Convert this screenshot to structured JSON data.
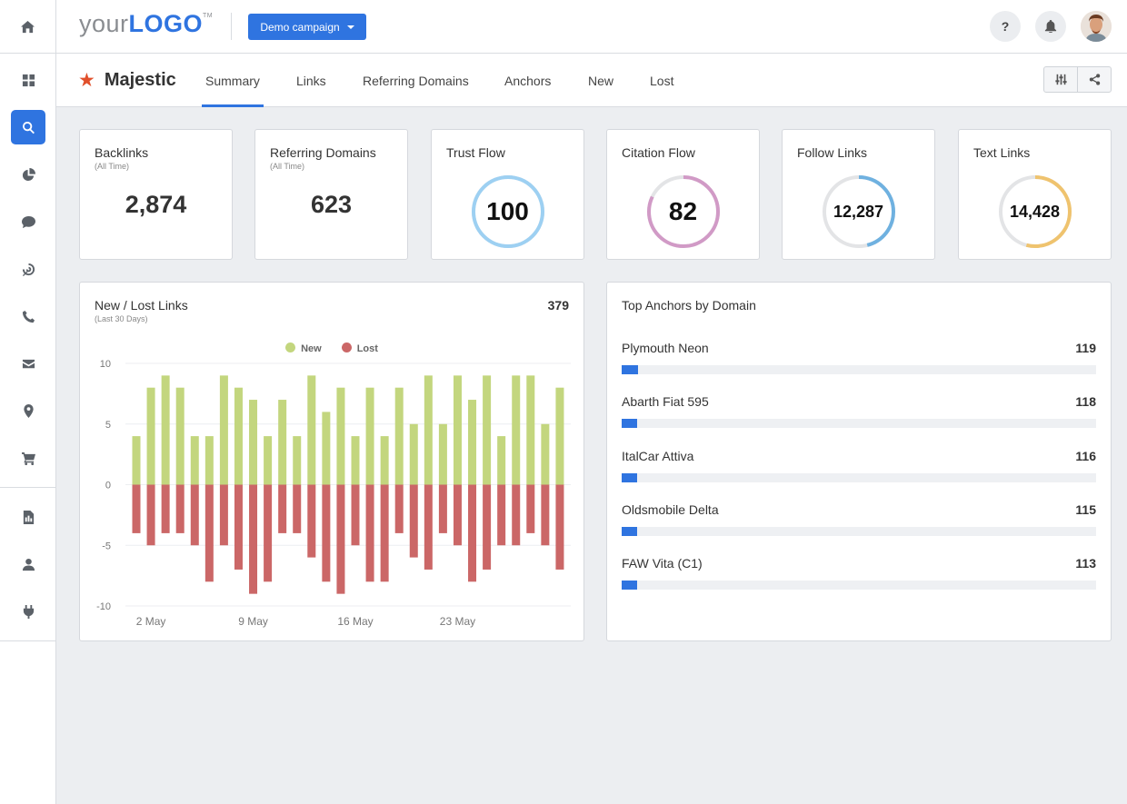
{
  "topbar": {
    "logo_prefix": "your",
    "logo_main": "LOGO",
    "logo_tm": "TM",
    "campaign_label": "Demo campaign",
    "help_label": "?"
  },
  "sidebar": {
    "items": [
      {
        "icon": "home-icon"
      },
      {
        "icon": "dashboard-grid-icon"
      },
      {
        "icon": "search-icon",
        "active": true
      },
      {
        "icon": "pie-chart-icon"
      },
      {
        "icon": "chat-bubble-icon"
      },
      {
        "icon": "target-icon"
      },
      {
        "icon": "phone-icon"
      },
      {
        "icon": "mail-icon"
      },
      {
        "icon": "location-pin-icon"
      },
      {
        "icon": "cart-icon"
      },
      {
        "icon": "report-icon"
      },
      {
        "icon": "user-icon"
      },
      {
        "icon": "plug-icon"
      }
    ]
  },
  "subheader": {
    "brand": "Majestic",
    "tabs": [
      "Summary",
      "Links",
      "Referring Domains",
      "Anchors",
      "New",
      "Lost"
    ],
    "active_tab": "Summary"
  },
  "stats": {
    "backlinks": {
      "title": "Backlinks",
      "subtitle": "(All Time)",
      "value": "2,874"
    },
    "referring_domains": {
      "title": "Referring Domains",
      "subtitle": "(All Time)",
      "value": "623"
    },
    "trust_flow": {
      "title": "Trust Flow",
      "value": "100",
      "fraction": 1.0,
      "color": "#9dd0f2"
    },
    "citation_flow": {
      "title": "Citation Flow",
      "value": "82",
      "fraction": 0.82,
      "color": "#d19ac6"
    },
    "follow_links": {
      "title": "Follow Links",
      "value": "12,287",
      "fraction": 0.46,
      "color": "#6fb1e0"
    },
    "text_links": {
      "title": "Text Links",
      "value": "14,428",
      "fraction": 0.54,
      "color": "#efc36e"
    }
  },
  "new_lost": {
    "title": "New / Lost Links",
    "subtitle": "(Last 30 Days)",
    "total": "379"
  },
  "chart_data": {
    "type": "bar",
    "series": [
      {
        "name": "New",
        "color": "#c3d67e",
        "values": [
          4,
          8,
          9,
          8,
          4,
          4,
          9,
          8,
          7,
          4,
          7,
          4,
          9,
          6,
          8,
          4,
          8,
          4,
          8,
          5,
          9,
          5,
          9,
          7,
          9,
          4,
          9,
          9,
          5,
          8
        ]
      },
      {
        "name": "Lost",
        "color": "#cb6767",
        "values": [
          -4,
          -5,
          -4,
          -4,
          -5,
          -8,
          -5,
          -7,
          -9,
          -8,
          -4,
          -4,
          -6,
          -8,
          -9,
          -5,
          -8,
          -8,
          -4,
          -6,
          -7,
          -4,
          -5,
          -8,
          -7,
          -5,
          -5,
          -4,
          -5,
          -7
        ]
      }
    ],
    "ylim": [
      -10,
      10
    ],
    "yticks": [
      10,
      5,
      0,
      -5,
      -10
    ],
    "xtick_labels": [
      {
        "label": "2 May",
        "index": 1
      },
      {
        "label": "9 May",
        "index": 8
      },
      {
        "label": "16 May",
        "index": 15
      },
      {
        "label": "23 May",
        "index": 22
      }
    ],
    "grid": true,
    "legend": "top-center"
  },
  "anchors": {
    "title": "Top Anchors by Domain",
    "items": [
      {
        "name": "Plymouth Neon",
        "value": "119",
        "fraction": 0.034
      },
      {
        "name": "Abarth Fiat 595",
        "value": "118",
        "fraction": 0.032
      },
      {
        "name": "ItalCar Attiva",
        "value": "116",
        "fraction": 0.032
      },
      {
        "name": "Oldsmobile Delta",
        "value": "115",
        "fraction": 0.032
      },
      {
        "name": "FAW Vita (C1)",
        "value": "113",
        "fraction": 0.032
      }
    ]
  }
}
